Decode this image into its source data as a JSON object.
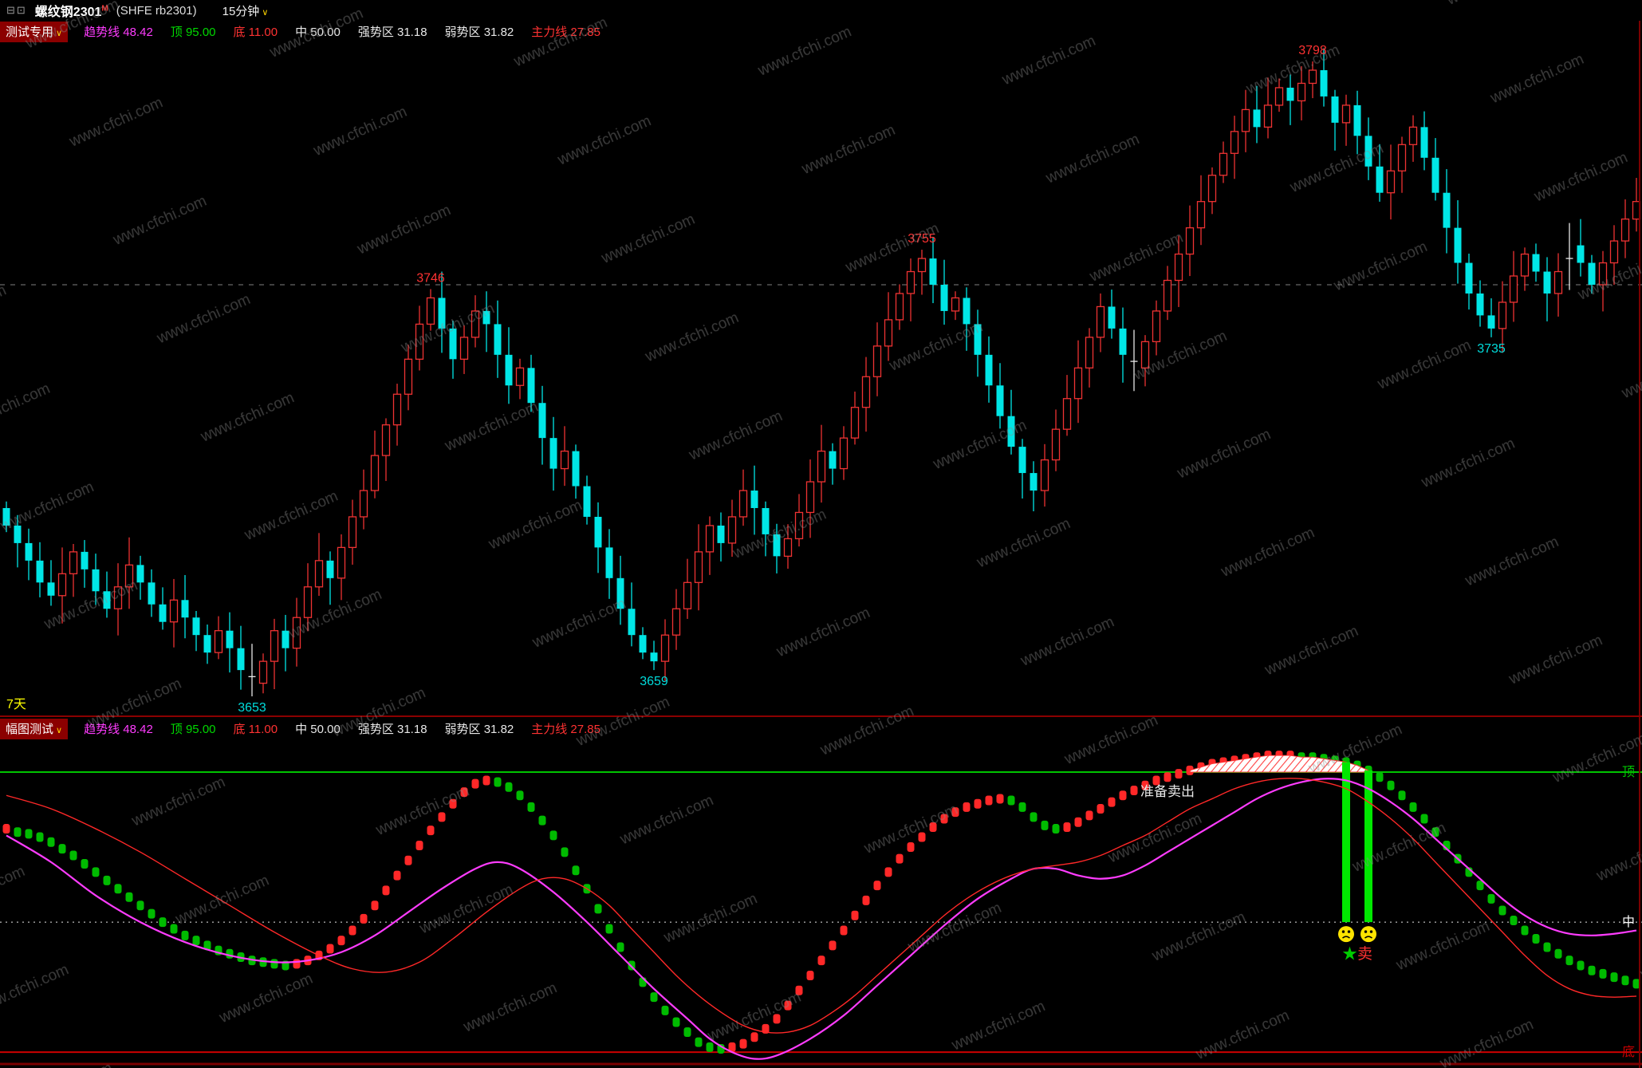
{
  "title_bar": {
    "window_icons": "⊟⊡",
    "instrument": "螺纹钢2301",
    "superscript": "M",
    "code": "(SHFE rb2301)",
    "period": "15分钟",
    "dropdown_arrow": "∨"
  },
  "main_indicator_header": {
    "name": "测试专用",
    "arrow": "∨",
    "readouts": [
      {
        "label": "趋势线",
        "value": "48.42",
        "color": "#ff3cff"
      },
      {
        "label": "顶",
        "value": "95.00",
        "color": "#00d800"
      },
      {
        "label": "底",
        "value": "11.00",
        "color": "#ff3232"
      },
      {
        "label": "中",
        "value": "50.00",
        "color": "#e8e8e8"
      },
      {
        "label": "强势区",
        "value": "31.18",
        "color": "#e8e8e8"
      },
      {
        "label": "弱势区",
        "value": "31.82",
        "color": "#e8e8e8"
      },
      {
        "label": "主力线",
        "value": "27.85",
        "color": "#ff3232"
      }
    ]
  },
  "sub_indicator_header": {
    "name": "幅图测试",
    "arrow": "∨",
    "readouts": [
      {
        "label": "趋势线",
        "value": "48.42",
        "color": "#ff3cff"
      },
      {
        "label": "顶",
        "value": "95.00",
        "color": "#00d800"
      },
      {
        "label": "底",
        "value": "11.00",
        "color": "#ff3232"
      },
      {
        "label": "中",
        "value": "50.00",
        "color": "#e8e8e8"
      },
      {
        "label": "强势区",
        "value": "31.18",
        "color": "#e8e8e8"
      },
      {
        "label": "弱势区",
        "value": "31.82",
        "color": "#e8e8e8"
      },
      {
        "label": "主力线",
        "value": "27.85",
        "color": "#ff3232"
      }
    ]
  },
  "watermark": "www.cfchi.com",
  "main_chart_note": {
    "text": "7天",
    "color": "#ffff00"
  },
  "colors": {
    "up_candle": "#ee3232",
    "down_candle": "#00e6e6",
    "doji": "#e8e8e8",
    "high_label": "#ff3232",
    "low_label": "#00dcdc",
    "bar_up": "#ff2828",
    "bar_down": "#00bb00",
    "sell_bar": "#00e800",
    "smiley": "#ffe400",
    "separator": "#8b0000",
    "reference_line": "#ffffff",
    "watermark_color": "#8a8a8a"
  },
  "chart_data": [
    {
      "type": "candlestick",
      "title": "螺纹钢2301 (SHFE rb2301) 15分钟 K线",
      "ylim": [
        3649,
        3802
      ],
      "reference_line_price": 3747,
      "closes": [
        3692,
        3688,
        3684,
        3679,
        3676,
        3681,
        3686,
        3682,
        3677,
        3673,
        3678,
        3683,
        3679,
        3674,
        3670,
        3675,
        3671,
        3667,
        3663,
        3668,
        3664,
        3659,
        3656,
        3661,
        3668,
        3664,
        3671,
        3678,
        3684,
        3680,
        3687,
        3694,
        3700,
        3708,
        3715,
        3722,
        3730,
        3738,
        3744,
        3737,
        3730,
        3735,
        3741,
        3738,
        3731,
        3724,
        3728,
        3720,
        3712,
        3705,
        3709,
        3701,
        3694,
        3687,
        3680,
        3673,
        3667,
        3663,
        3661,
        3667,
        3673,
        3679,
        3686,
        3692,
        3688,
        3694,
        3700,
        3696,
        3690,
        3685,
        3689,
        3695,
        3702,
        3709,
        3705,
        3712,
        3719,
        3726,
        3733,
        3739,
        3745,
        3750,
        3753,
        3747,
        3741,
        3744,
        3738,
        3731,
        3724,
        3717,
        3710,
        3704,
        3700,
        3707,
        3714,
        3721,
        3728,
        3735,
        3742,
        3737,
        3731,
        3728,
        3734,
        3741,
        3748,
        3754,
        3760,
        3766,
        3772,
        3777,
        3782,
        3787,
        3783,
        3788,
        3792,
        3789,
        3793,
        3796,
        3790,
        3784,
        3788,
        3781,
        3774,
        3768,
        3773,
        3779,
        3783,
        3776,
        3768,
        3760,
        3752,
        3745,
        3740,
        3737,
        3743,
        3749,
        3754,
        3750,
        3745,
        3750,
        3756,
        3752,
        3747,
        3752,
        3757,
        3762,
        3766
      ],
      "labeled_extremes": [
        {
          "index": 22,
          "kind": "low",
          "price": 3653
        },
        {
          "index": 38,
          "kind": "high",
          "price": 3746
        },
        {
          "index": 58,
          "kind": "low",
          "price": 3659
        },
        {
          "index": 82,
          "kind": "high",
          "price": 3755
        },
        {
          "index": 117,
          "kind": "high",
          "price": 3798
        },
        {
          "index": 133,
          "kind": "low",
          "price": 3735
        }
      ],
      "white_doji_indexes": [
        22,
        101,
        140
      ]
    },
    {
      "type": "bar",
      "title": "幅图测试 oscillator",
      "ylim": [
        0,
        105
      ],
      "levels": [
        {
          "label": "顶",
          "value": 95,
          "color": "#00c400",
          "style": "solid"
        },
        {
          "label": "中",
          "value": 50,
          "color": "#ffffff",
          "style": "dotted"
        },
        {
          "label": "底",
          "value": 11,
          "color": "#cc0000",
          "style": "solid"
        }
      ],
      "values": [
        78,
        77,
        76.5,
        75.5,
        74,
        72,
        70,
        67.5,
        65,
        62.5,
        60,
        57.5,
        55,
        52.5,
        50,
        48,
        46,
        44.5,
        43,
        41.5,
        40.5,
        39.5,
        38.5,
        38,
        37.5,
        37,
        37.5,
        38.5,
        40,
        42,
        44.5,
        47.5,
        51,
        55,
        59.5,
        64,
        68.5,
        73,
        77.5,
        81.5,
        85.5,
        89,
        91.5,
        92.5,
        92,
        90.5,
        88,
        84.5,
        80.5,
        76,
        71,
        65.5,
        60,
        54,
        48,
        42.5,
        37,
        32,
        27.5,
        23.5,
        20,
        17,
        14,
        12.5,
        12,
        12.5,
        13.5,
        15.5,
        18,
        21,
        25,
        29.5,
        34,
        38.5,
        43,
        47.5,
        52,
        56.5,
        61,
        65,
        69,
        72.5,
        75.5,
        78.5,
        81,
        83,
        84.5,
        85.5,
        86.5,
        87,
        86.5,
        84.5,
        81.5,
        79,
        78,
        78.5,
        80,
        82,
        84,
        86,
        88,
        89.5,
        91,
        92.5,
        93.5,
        94.5,
        95.5,
        96.5,
        97.5,
        98,
        98.5,
        99,
        99.5,
        100,
        100,
        100,
        99.5,
        99.5,
        99,
        98.5,
        98,
        97,
        95.5,
        93.5,
        91,
        88,
        84.5,
        81,
        77,
        73,
        69,
        65,
        61,
        57,
        53.5,
        50.5,
        47.5,
        45,
        42.5,
        40.5,
        38.5,
        37,
        35.5,
        34.5,
        33.5,
        32.5,
        31.5
      ],
      "series": [
        {
          "name": "趋势线",
          "color": "#ff3cff",
          "keypoints": [
            [
              0,
              76
            ],
            [
              4,
              68
            ],
            [
              8,
              58
            ],
            [
              12,
              50
            ],
            [
              16,
              44
            ],
            [
              20,
              40
            ],
            [
              24,
              38
            ],
            [
              27,
              38.5
            ],
            [
              30,
              41
            ],
            [
              33,
              46
            ],
            [
              36,
              53
            ],
            [
              39,
              60
            ],
            [
              42,
              66
            ],
            [
              44,
              68
            ],
            [
              46,
              66
            ],
            [
              49,
              59
            ],
            [
              52,
              50
            ],
            [
              55,
              40
            ],
            [
              58,
              30
            ],
            [
              61,
              21
            ],
            [
              63,
              15
            ],
            [
              65,
              11
            ],
            [
              67,
              9
            ],
            [
              69,
              10
            ],
            [
              72,
              15
            ],
            [
              75,
              22
            ],
            [
              78,
              31
            ],
            [
              81,
              40
            ],
            [
              84,
              49
            ],
            [
              87,
              57
            ],
            [
              90,
              63
            ],
            [
              92,
              66
            ],
            [
              94,
              66
            ],
            [
              96,
              64
            ],
            [
              98,
              63
            ],
            [
              100,
              64
            ],
            [
              102,
              67
            ],
            [
              104,
              71
            ],
            [
              106,
              75
            ],
            [
              108,
              79
            ],
            [
              110,
              83
            ],
            [
              112,
              87
            ],
            [
              114,
              90
            ],
            [
              116,
              92
            ],
            [
              118,
              93
            ],
            [
              120,
              92.5
            ],
            [
              122,
              90
            ],
            [
              124,
              86
            ],
            [
              126,
              81
            ],
            [
              128,
              75
            ],
            [
              130,
              69
            ],
            [
              132,
              63
            ],
            [
              134,
              57
            ],
            [
              136,
              52
            ],
            [
              138,
              48.5
            ],
            [
              140,
              46.5
            ],
            [
              142,
              46
            ],
            [
              144,
              46.5
            ],
            [
              146,
              47.5
            ]
          ]
        },
        {
          "name": "主力线",
          "color": "#ff2828",
          "keypoints": [
            [
              0,
              88
            ],
            [
              4,
              84
            ],
            [
              8,
              78
            ],
            [
              12,
              71
            ],
            [
              16,
              63
            ],
            [
              20,
              55
            ],
            [
              24,
              47
            ],
            [
              28,
              40
            ],
            [
              31,
              36
            ],
            [
              34,
              35
            ],
            [
              37,
              38
            ],
            [
              40,
              45
            ],
            [
              43,
              53
            ],
            [
              46,
              60
            ],
            [
              48,
              63
            ],
            [
              50,
              63
            ],
            [
              52,
              60
            ],
            [
              54,
              55
            ],
            [
              56,
              48
            ],
            [
              58,
              41
            ],
            [
              60,
              34
            ],
            [
              62,
              28
            ],
            [
              64,
              23
            ],
            [
              66,
              19
            ],
            [
              68,
              17
            ],
            [
              70,
              17
            ],
            [
              72,
              19
            ],
            [
              74,
              23
            ],
            [
              76,
              28
            ],
            [
              78,
              34
            ],
            [
              80,
              40
            ],
            [
              82,
              46
            ],
            [
              84,
              52
            ],
            [
              86,
              57
            ],
            [
              88,
              61
            ],
            [
              90,
              64
            ],
            [
              92,
              66
            ],
            [
              94,
              67
            ],
            [
              96,
              68
            ],
            [
              98,
              70
            ],
            [
              100,
              73
            ],
            [
              102,
              76
            ],
            [
              104,
              80
            ],
            [
              106,
              84
            ],
            [
              108,
              87
            ],
            [
              110,
              90
            ],
            [
              112,
              92
            ],
            [
              114,
              93
            ],
            [
              116,
              93
            ],
            [
              118,
              92
            ],
            [
              120,
              90
            ],
            [
              122,
              86
            ],
            [
              124,
              81
            ],
            [
              126,
              75
            ],
            [
              128,
              68
            ],
            [
              130,
              61
            ],
            [
              132,
              54
            ],
            [
              134,
              47
            ],
            [
              136,
              40
            ],
            [
              138,
              34
            ],
            [
              140,
              30
            ],
            [
              142,
              28
            ],
            [
              144,
              27.5
            ],
            [
              146,
              27.8
            ]
          ]
        }
      ],
      "signals": {
        "prepare_sell_text": "准备卖出",
        "prepare_sell_index": 104,
        "sell_bar_indexes": [
          120,
          122
        ],
        "sell_star": "★",
        "sell_star_color": "#00cc00",
        "sell_text": "卖",
        "sell_text_color": "#ff3232"
      }
    }
  ]
}
